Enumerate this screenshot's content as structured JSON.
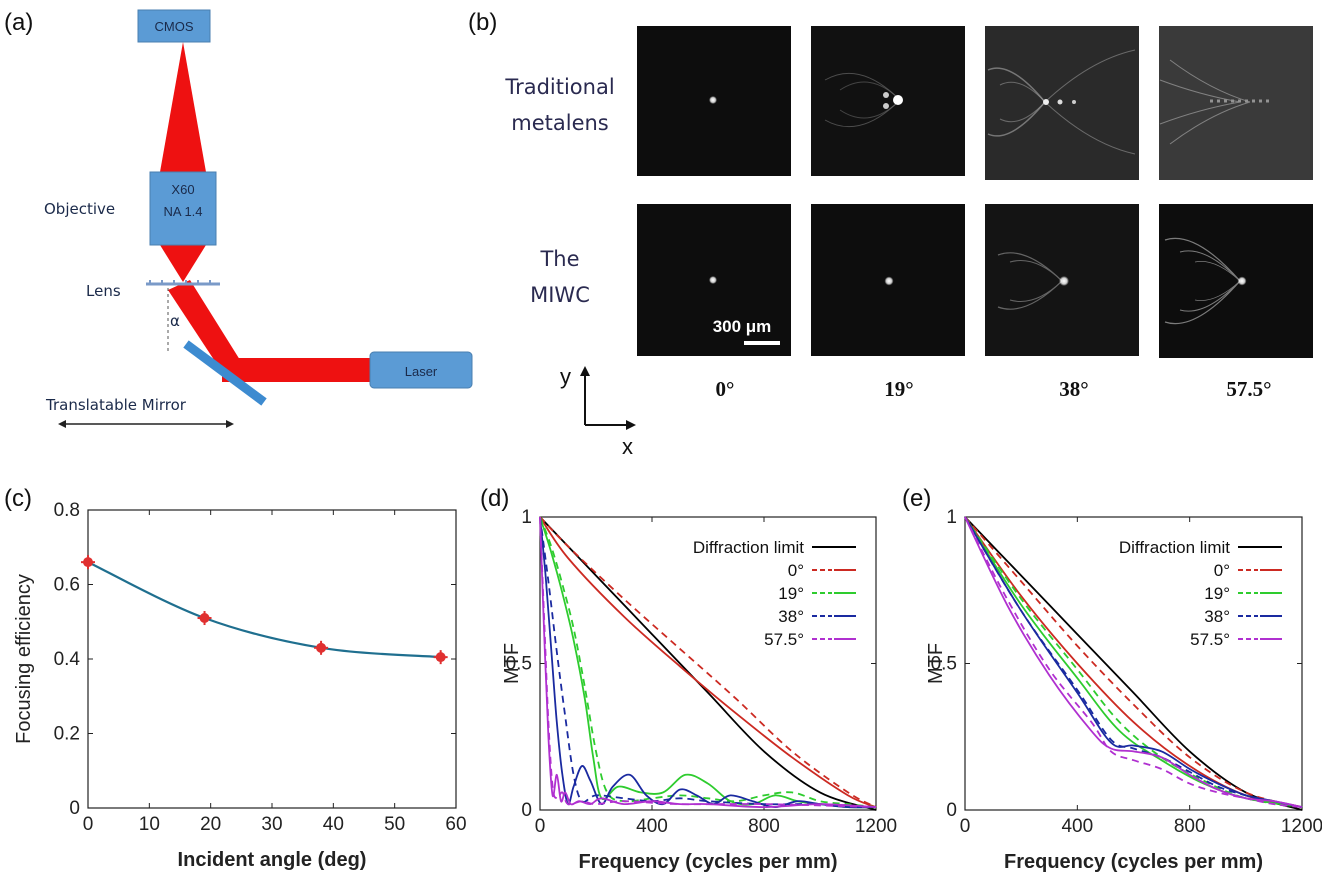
{
  "panels": {
    "a": "(a)",
    "b": "(b)",
    "c": "(c)",
    "d": "(d)",
    "e": "(e)"
  },
  "setup": {
    "cmos": "CMOS",
    "objective_mag": "X60",
    "objective_na": "NA 1.4",
    "objective_label": "Objective",
    "lens_label": "Lens",
    "alpha": "α",
    "laser": "Laser",
    "mirror_label": "Translatable Mirror"
  },
  "images": {
    "row1_label_line1": "Traditional",
    "row1_label_line2": "metalens",
    "row2_label_line1": "The",
    "row2_label_line2": "MIWC",
    "scalebar": "300 μm",
    "angles": [
      "0°",
      "19°",
      "38°",
      "57.5°"
    ],
    "axis_y": "y",
    "axis_x": "x"
  },
  "colors": {
    "beam": "#ee1111",
    "box": "#5b9bd5",
    "curve_c": "#1f6f8f",
    "marker_c": "#e03030",
    "diffraction": "#000000",
    "deg0": "#cc2a22",
    "deg19": "#2ecc2e",
    "deg38": "#1a2aa0",
    "deg575": "#b030d0"
  },
  "chart_data": [
    {
      "type": "line",
      "panel": "c",
      "xlabel": "Incident angle (deg)",
      "ylabel": "Focusing efficiency",
      "xlim": [
        0,
        60
      ],
      "ylim": [
        0,
        0.8
      ],
      "xticks": [
        "0",
        "10",
        "20",
        "30",
        "40",
        "50",
        "60"
      ],
      "yticks": [
        "0",
        "0.2",
        "0.4",
        "0.6",
        "0.8"
      ],
      "x": [
        0,
        19,
        38,
        57.5
      ],
      "y": [
        0.66,
        0.51,
        0.43,
        0.405
      ]
    },
    {
      "type": "line",
      "panel": "d",
      "xlabel": "Frequency (cycles per mm)",
      "ylabel": "MTF",
      "xlim": [
        0,
        1200
      ],
      "ylim": [
        0,
        1
      ],
      "xticks": [
        "0",
        "400",
        "800",
        "1200"
      ],
      "yticks": [
        "0",
        "0.5",
        "1"
      ],
      "legend": [
        "Diffraction limit",
        "0°",
        "19°",
        "38°",
        "57.5°"
      ],
      "series": [
        {
          "name": "Diffraction limit",
          "style": "solid",
          "x": [
            0,
            200,
            400,
            600,
            800,
            1000,
            1200
          ],
          "y": [
            1,
            0.8,
            0.6,
            0.4,
            0.2,
            0.06,
            0
          ]
        },
        {
          "name": "0° solid",
          "style": "solid",
          "x": [
            0,
            100,
            300,
            500,
            700,
            900,
            1100,
            1200
          ],
          "y": [
            1,
            0.86,
            0.66,
            0.49,
            0.33,
            0.18,
            0.05,
            0.01
          ]
        },
        {
          "name": "0° dashed",
          "style": "dashed",
          "x": [
            0,
            100,
            300,
            500,
            700,
            900,
            1100,
            1200
          ],
          "y": [
            1,
            0.9,
            0.72,
            0.55,
            0.38,
            0.2,
            0.06,
            0.01
          ]
        },
        {
          "name": "19° solid",
          "style": "solid",
          "x": [
            0,
            40,
            80,
            120,
            160,
            190,
            220,
            280,
            360,
            440,
            520,
            600,
            680,
            760,
            840,
            920,
            1000,
            1100,
            1200
          ],
          "y": [
            1,
            0.88,
            0.74,
            0.58,
            0.38,
            0.18,
            0.04,
            0.08,
            0.06,
            0.06,
            0.12,
            0.09,
            0.03,
            0.02,
            0.05,
            0.03,
            0.02,
            0.01,
            0.01
          ]
        },
        {
          "name": "19° dashed",
          "style": "dashed",
          "x": [
            0,
            40,
            80,
            120,
            160,
            200,
            240,
            300,
            400,
            500,
            600,
            700,
            800,
            900,
            1000,
            1100,
            1200
          ],
          "y": [
            1,
            0.9,
            0.77,
            0.62,
            0.42,
            0.2,
            0.06,
            0.03,
            0.04,
            0.05,
            0.04,
            0.03,
            0.05,
            0.06,
            0.03,
            0.02,
            0.01
          ]
        },
        {
          "name": "38° solid",
          "style": "solid",
          "x": [
            0,
            20,
            40,
            60,
            80,
            100,
            120,
            150,
            180,
            220,
            260,
            320,
            380,
            440,
            500,
            560,
            620,
            680,
            760,
            840,
            920,
            1000,
            1100,
            1200
          ],
          "y": [
            1,
            0.8,
            0.55,
            0.3,
            0.12,
            0.02,
            0.08,
            0.15,
            0.1,
            0.02,
            0.08,
            0.12,
            0.05,
            0.02,
            0.07,
            0.05,
            0.02,
            0.05,
            0.03,
            0.01,
            0.03,
            0.02,
            0.01,
            0.01
          ]
        },
        {
          "name": "38° dashed",
          "style": "dashed",
          "x": [
            0,
            30,
            60,
            90,
            120,
            150,
            200,
            300,
            400,
            500,
            600,
            800,
            1000,
            1200
          ],
          "y": [
            1,
            0.78,
            0.54,
            0.32,
            0.12,
            0.03,
            0.05,
            0.04,
            0.03,
            0.04,
            0.03,
            0.02,
            0.02,
            0.01
          ]
        },
        {
          "name": "57.5° solid",
          "style": "solid",
          "x": [
            0,
            15,
            30,
            45,
            60,
            75,
            90,
            110,
            140,
            180,
            220,
            300,
            400,
            500,
            600,
            800,
            1000,
            1200
          ],
          "y": [
            1,
            0.6,
            0.25,
            0.05,
            0.12,
            0.03,
            0.06,
            0.02,
            0.03,
            0.02,
            0.04,
            0.02,
            0.03,
            0.02,
            0.02,
            0.01,
            0.02,
            0.01
          ]
        },
        {
          "name": "57.5° dashed",
          "style": "dashed",
          "x": [
            0,
            15,
            30,
            45,
            60,
            80,
            100,
            150,
            200,
            300,
            500,
            800,
            1200
          ],
          "y": [
            1,
            0.65,
            0.3,
            0.08,
            0.04,
            0.06,
            0.02,
            0.03,
            0.02,
            0.03,
            0.02,
            0.02,
            0.01
          ]
        }
      ]
    },
    {
      "type": "line",
      "panel": "e",
      "xlabel": "Frequency (cycles per mm)",
      "ylabel": "MTF",
      "xlim": [
        0,
        1200
      ],
      "ylim": [
        0,
        1
      ],
      "xticks": [
        "0",
        "400",
        "800",
        "1200"
      ],
      "yticks": [
        "0",
        "0.5",
        "1"
      ],
      "legend": [
        "Diffraction limit",
        "0°",
        "19°",
        "38°",
        "57.5°"
      ],
      "series": [
        {
          "name": "Diffraction limit",
          "style": "solid",
          "x": [
            0,
            200,
            400,
            600,
            800,
            1000,
            1200
          ],
          "y": [
            1,
            0.8,
            0.6,
            0.4,
            0.2,
            0.06,
            0
          ]
        },
        {
          "name": "0° solid",
          "style": "solid",
          "x": [
            0,
            200,
            400,
            600,
            800,
            1000,
            1200
          ],
          "y": [
            1,
            0.73,
            0.5,
            0.3,
            0.15,
            0.05,
            0.01
          ]
        },
        {
          "name": "0° dashed",
          "style": "dashed",
          "x": [
            0,
            200,
            400,
            600,
            800,
            1000,
            1200
          ],
          "y": [
            1,
            0.78,
            0.56,
            0.36,
            0.18,
            0.06,
            0.01
          ]
        },
        {
          "name": "19° solid",
          "style": "solid",
          "x": [
            0,
            200,
            400,
            550,
            700,
            850,
            1000,
            1200
          ],
          "y": [
            1,
            0.7,
            0.45,
            0.27,
            0.17,
            0.09,
            0.04,
            0.01
          ]
        },
        {
          "name": "19° dashed",
          "style": "dashed",
          "x": [
            0,
            200,
            400,
            550,
            700,
            850,
            1000,
            1200
          ],
          "y": [
            1,
            0.72,
            0.48,
            0.3,
            0.18,
            0.1,
            0.04,
            0.01
          ]
        },
        {
          "name": "38° solid",
          "style": "solid",
          "x": [
            0,
            200,
            400,
            520,
            600,
            700,
            800,
            900,
            1000,
            1100,
            1200
          ],
          "y": [
            1,
            0.68,
            0.4,
            0.23,
            0.22,
            0.2,
            0.14,
            0.09,
            0.05,
            0.03,
            0.01
          ]
        },
        {
          "name": "38° dashed",
          "style": "dashed",
          "x": [
            0,
            200,
            400,
            520,
            600,
            700,
            800,
            900,
            1000,
            1100,
            1200
          ],
          "y": [
            1,
            0.68,
            0.41,
            0.24,
            0.21,
            0.18,
            0.13,
            0.08,
            0.05,
            0.03,
            0.01
          ]
        },
        {
          "name": "57.5° solid",
          "style": "solid",
          "x": [
            0,
            150,
            300,
            450,
            520,
            600,
            700,
            800,
            900,
            1000,
            1100,
            1200
          ],
          "y": [
            1,
            0.7,
            0.46,
            0.27,
            0.21,
            0.2,
            0.18,
            0.12,
            0.07,
            0.04,
            0.03,
            0.01
          ]
        },
        {
          "name": "57.5° dashed",
          "style": "dashed",
          "x": [
            0,
            150,
            300,
            450,
            520,
            600,
            700,
            800,
            900,
            1000,
            1100,
            1200
          ],
          "y": [
            1,
            0.72,
            0.48,
            0.3,
            0.2,
            0.17,
            0.14,
            0.09,
            0.06,
            0.04,
            0.02,
            0.01
          ]
        }
      ]
    }
  ]
}
